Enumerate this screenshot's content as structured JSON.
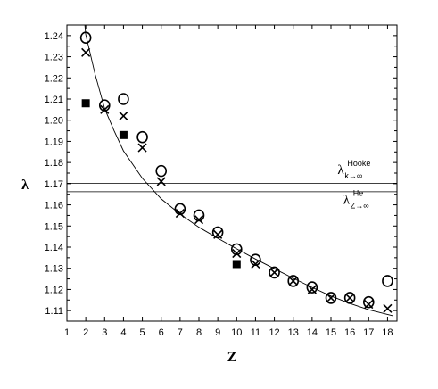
{
  "chart_data": {
    "type": "scatter",
    "title": "",
    "xlabel": "Z",
    "ylabel": "λ",
    "xlim": [
      1,
      18.5
    ],
    "ylim": [
      1.105,
      1.245
    ],
    "xticks": [
      1,
      2,
      3,
      4,
      5,
      6,
      7,
      8,
      9,
      10,
      11,
      12,
      13,
      14,
      15,
      16,
      17,
      18
    ],
    "yticks": [
      1.11,
      1.12,
      1.13,
      1.14,
      1.15,
      1.16,
      1.17,
      1.18,
      1.19,
      1.2,
      1.21,
      1.22,
      1.23,
      1.24
    ],
    "grid": false,
    "series": [
      {
        "marker": "circle",
        "points": [
          [
            2,
            1.239
          ],
          [
            3,
            1.207
          ],
          [
            4,
            1.21
          ],
          [
            5,
            1.192
          ],
          [
            6,
            1.176
          ],
          [
            7,
            1.158
          ],
          [
            8,
            1.155
          ],
          [
            9,
            1.147
          ],
          [
            10,
            1.139
          ],
          [
            11,
            1.134
          ],
          [
            12,
            1.128
          ],
          [
            13,
            1.124
          ],
          [
            14,
            1.121
          ],
          [
            15,
            1.116
          ],
          [
            16,
            1.116
          ],
          [
            17,
            1.114
          ],
          [
            18,
            1.124
          ]
        ]
      },
      {
        "marker": "cross",
        "points": [
          [
            2,
            1.232
          ],
          [
            3,
            1.205
          ],
          [
            4,
            1.202
          ],
          [
            5,
            1.187
          ],
          [
            6,
            1.171
          ],
          [
            7,
            1.156
          ],
          [
            8,
            1.153
          ],
          [
            9,
            1.146
          ],
          [
            10,
            1.137
          ],
          [
            11,
            1.132
          ],
          [
            12,
            1.128
          ],
          [
            13,
            1.124
          ],
          [
            14,
            1.12
          ],
          [
            15,
            1.116
          ],
          [
            16,
            1.116
          ],
          [
            17,
            1.113
          ],
          [
            18,
            1.111
          ]
        ]
      },
      {
        "marker": "square",
        "points": [
          [
            2,
            1.208
          ],
          [
            4,
            1.193
          ],
          [
            10,
            1.132
          ]
        ]
      }
    ],
    "fit_curve": {
      "style": "solid",
      "points": [
        [
          1.95,
          1.245
        ],
        [
          2,
          1.2405
        ],
        [
          2.5,
          1.2215
        ],
        [
          3,
          1.2055
        ],
        [
          3.5,
          1.195
        ],
        [
          4,
          1.1855
        ],
        [
          5,
          1.1725
        ],
        [
          6,
          1.1628
        ],
        [
          7,
          1.1556
        ],
        [
          8,
          1.1494
        ],
        [
          9,
          1.1442
        ],
        [
          10,
          1.1392
        ],
        [
          11,
          1.1344
        ],
        [
          12,
          1.1298
        ],
        [
          13,
          1.1253
        ],
        [
          14,
          1.121
        ],
        [
          15,
          1.1169
        ],
        [
          16,
          1.1134
        ],
        [
          17,
          1.1104
        ],
        [
          18.3,
          1.1075
        ]
      ]
    },
    "hlines": [
      {
        "y": 1.1702
      },
      {
        "y": 1.1662
      }
    ],
    "annotations": [
      {
        "main": "λ",
        "sub": "k→∞",
        "sup": "Hooke",
        "x": 15.35,
        "y": 1.1745
      },
      {
        "main": "λ",
        "sub": "Z→∞",
        "sup": "He",
        "x": 15.65,
        "y": 1.1605
      }
    ]
  }
}
